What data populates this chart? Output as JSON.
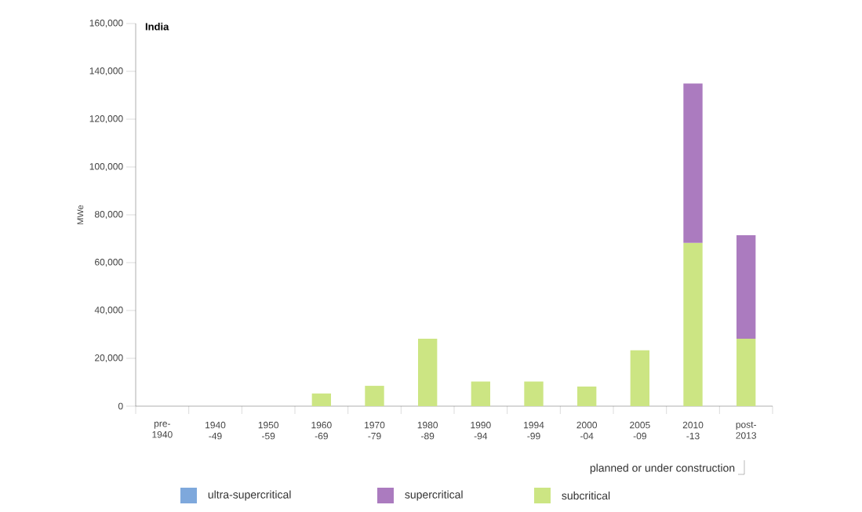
{
  "chart_data": {
    "type": "bar",
    "stacked": true,
    "title": "India",
    "ylabel": "MWe",
    "categories": [
      "pre-1940",
      "1940 -49",
      "1950 -59",
      "1960 -69",
      "1970 -79",
      "1980 -89",
      "1990 -94",
      "1994 -99",
      "2000 -04",
      "2005 -09",
      "2010 -13",
      "post-2013"
    ],
    "series": [
      {
        "name": "subcritical",
        "color": "#cce583",
        "values": [
          0,
          0,
          0,
          5300,
          8500,
          28200,
          10300,
          10300,
          8200,
          23400,
          68300,
          28200
        ]
      },
      {
        "name": "supercritical",
        "color": "#ab7bbf",
        "values": [
          0,
          0,
          0,
          0,
          0,
          0,
          0,
          0,
          0,
          0,
          66600,
          43300
        ]
      },
      {
        "name": "ultra-supercritical",
        "color": "#7ea8dc",
        "values": [
          0,
          0,
          0,
          0,
          0,
          0,
          0,
          0,
          0,
          0,
          0,
          0
        ]
      }
    ],
    "ylim": [
      0,
      160000
    ],
    "yticks": [
      0,
      {
        "value": 20000,
        "label": "20,000"
      },
      {
        "value": 40000,
        "label": "40,000"
      },
      {
        "value": 60000,
        "label": "60,000"
      },
      {
        "value": 80000,
        "label": "80,000"
      },
      {
        "value": 100000,
        "label": "100,000"
      },
      {
        "value": 120000,
        "label": "120,000"
      },
      {
        "value": 140000,
        "label": "140,000"
      },
      {
        "value": 160000,
        "label": "160,000"
      }
    ],
    "annotations": [
      "planned or under construction"
    ],
    "legend": "bottom",
    "grid": false
  }
}
